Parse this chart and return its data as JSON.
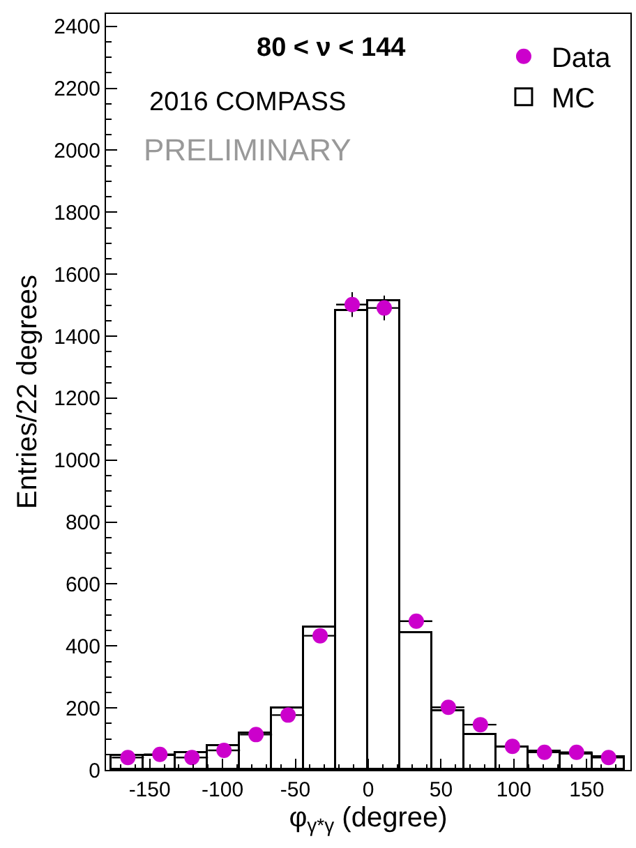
{
  "chart_data": {
    "type": "histogram",
    "xlabel": "φ$_{γ*γ}$ (degree)",
    "ylabel": "Entries/22 degrees",
    "annotations": [
      "80 < ν < 144",
      "2016 COMPASS",
      "PRELIMINARY"
    ],
    "bins": [
      -176,
      -154,
      -132,
      -110,
      -88,
      -66,
      -44,
      -22,
      0,
      22,
      44,
      66,
      88,
      110,
      132,
      154,
      176
    ],
    "series": [
      {
        "name": "MC",
        "color": "#000000",
        "values": [
          45,
          45,
          55,
          75,
          115,
          200,
          460,
          1482,
          1513,
          443,
          190,
          112,
          74,
          57,
          48,
          42
        ]
      },
      {
        "name": "Data",
        "type": "scatter",
        "color": "#cc00cc",
        "x": [
          -165,
          -143,
          -121,
          -99,
          -77,
          -55,
          -33,
          -11,
          11,
          33,
          55,
          77,
          99,
          121,
          143,
          165
        ],
        "values": [
          40,
          50,
          40,
          63,
          114,
          177,
          433,
          1502,
          1491,
          480,
          202,
          146,
          76,
          57,
          57,
          40
        ],
        "xerrors": [
          11,
          11,
          11,
          11,
          11,
          11,
          11,
          11,
          11,
          11,
          11,
          11,
          11,
          11,
          11,
          11
        ],
        "errors": [
          null,
          null,
          null,
          null,
          null,
          null,
          null,
          40,
          40,
          null,
          null,
          null,
          null,
          null,
          null,
          null
        ]
      }
    ],
    "xlim": [
      -180,
      180
    ],
    "xticks": [
      -150,
      -100,
      -50,
      0,
      50,
      100,
      150
    ],
    "ylim": [
      0,
      2440
    ],
    "yticks": [
      0,
      200,
      400,
      600,
      800,
      1000,
      1200,
      1400,
      1600,
      1800,
      2000,
      2200,
      2400
    ],
    "grid": false,
    "legend": "top right",
    "marker": "circle"
  }
}
